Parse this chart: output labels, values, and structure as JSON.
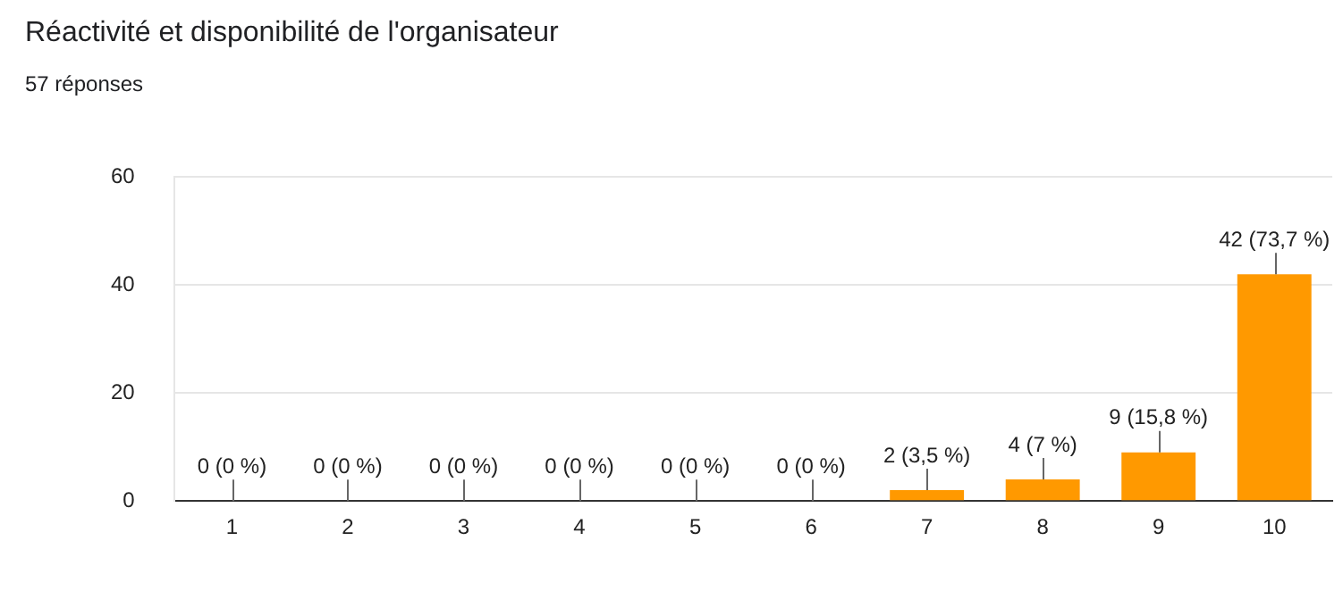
{
  "chart_data": {
    "type": "bar",
    "title": "Réactivité et disponibilité de l'organisateur",
    "subtitle": "57 réponses",
    "categories": [
      "1",
      "2",
      "3",
      "4",
      "5",
      "6",
      "7",
      "8",
      "9",
      "10"
    ],
    "values": [
      0,
      0,
      0,
      0,
      0,
      0,
      2,
      4,
      9,
      42
    ],
    "value_labels": [
      "0 (0 %)",
      "0 (0 %)",
      "0 (0 %)",
      "0 (0 %)",
      "0 (0 %)",
      "0 (0 %)",
      "2 (3,5 %)",
      "4 (7 %)",
      "9 (15,8 %)",
      "42 (73,7 %)"
    ],
    "color": "#ff9900",
    "ylim": [
      0,
      60
    ],
    "yticks": [
      0,
      20,
      40,
      60
    ],
    "grid": "y",
    "legend": false
  }
}
